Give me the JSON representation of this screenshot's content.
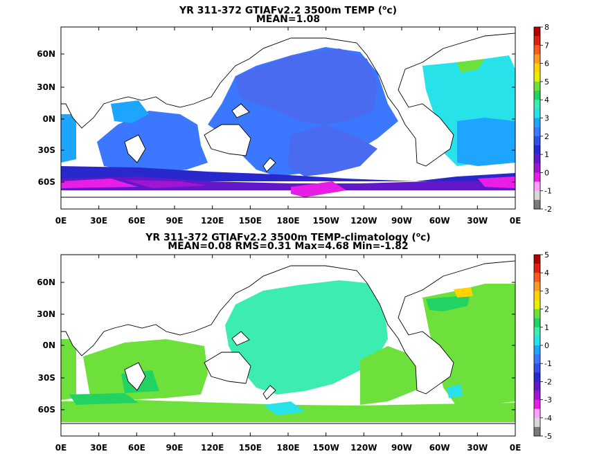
{
  "panels": [
    {
      "title": "YR 311-372 GTIAFv2.2 3500m TEMP (",
      "title_sup": "o",
      "title_end": "c)",
      "stats": "MEAN=1.08",
      "colorbar": {
        "labels": [
          "8",
          "7",
          "6",
          "5",
          "4",
          "3",
          "2",
          "1",
          "0",
          "-1",
          "-2"
        ],
        "colors": [
          "#b00000",
          "#e02010",
          "#ff5a1e",
          "#ff9a28",
          "#ffd200",
          "#e8f000",
          "#6ee03c",
          "#22d262",
          "#3cecb0",
          "#28e2ea",
          "#1ea6ff",
          "#3c78ff",
          "#3050e6",
          "#2828cc",
          "#6018c8",
          "#a014d2",
          "#e61ee6",
          "#ffa0ff",
          "#d8d8d8",
          "#7a7a7a"
        ]
      }
    },
    {
      "title": "YR 311-372 GTIAFv2.2 3500m TEMP-climatology (",
      "title_sup": "o",
      "title_end": "c)",
      "stats": "MEAN=0.08   RMS=0.31   Max=4.68   Min=-1.82",
      "colorbar": {
        "labels": [
          "5",
          "4",
          "3",
          "2",
          "1",
          "0",
          "-1",
          "-2",
          "-3",
          "-4",
          "-5"
        ],
        "colors": [
          "#b00000",
          "#e02010",
          "#ff5a1e",
          "#ff9a28",
          "#ffd200",
          "#e8f000",
          "#6ee03c",
          "#22d262",
          "#3cecb0",
          "#28e2ea",
          "#1ea6ff",
          "#3c78ff",
          "#3050e6",
          "#2828cc",
          "#6018c8",
          "#a014d2",
          "#e61ee6",
          "#ffa0ff",
          "#d8d8d8",
          "#7a7a7a"
        ]
      }
    }
  ],
  "lon_labels": [
    "0E",
    "30E",
    "60E",
    "90E",
    "120E",
    "150E",
    "180E",
    "150W",
    "120W",
    "90W",
    "60W",
    "30W",
    "0E"
  ],
  "lat_labels": [
    "60N",
    "30N",
    "0N",
    "30S",
    "60S"
  ]
}
